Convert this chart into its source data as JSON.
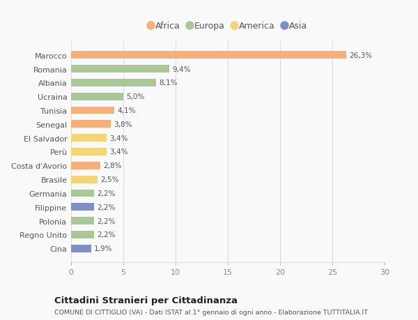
{
  "categories": [
    "Marocco",
    "Romania",
    "Albania",
    "Ucraina",
    "Tunisia",
    "Senegal",
    "El Salvador",
    "Perù",
    "Costa d'Avorio",
    "Brasile",
    "Germania",
    "Filippine",
    "Polonia",
    "Regno Unito",
    "Cina"
  ],
  "values": [
    26.3,
    9.4,
    8.1,
    5.0,
    4.1,
    3.8,
    3.4,
    3.4,
    2.8,
    2.5,
    2.2,
    2.2,
    2.2,
    2.2,
    1.9
  ],
  "labels": [
    "26,3%",
    "9,4%",
    "8,1%",
    "5,0%",
    "4,1%",
    "3,8%",
    "3,4%",
    "3,4%",
    "2,8%",
    "2,5%",
    "2,2%",
    "2,2%",
    "2,2%",
    "2,2%",
    "1,9%"
  ],
  "colors": [
    "#F5B07A",
    "#A8C897",
    "#A8C897",
    "#A8C897",
    "#F5B07A",
    "#F5B07A",
    "#F5D57A",
    "#F5D57A",
    "#F5B07A",
    "#F5D57A",
    "#A8C897",
    "#7B90C8",
    "#A8C897",
    "#A8C897",
    "#7B90C8"
  ],
  "legend": [
    {
      "label": "Africa",
      "color": "#F5B07A"
    },
    {
      "label": "Europa",
      "color": "#A8C897"
    },
    {
      "label": "America",
      "color": "#F5D57A"
    },
    {
      "label": "Asia",
      "color": "#7B90C8"
    }
  ],
  "title": "Cittadini Stranieri per Cittadinanza",
  "subtitle": "COMUNE DI CITTIGLIO (VA) - Dati ISTAT al 1° gennaio di ogni anno - Elaborazione TUTTITALIA.IT",
  "xlim": [
    0,
    30
  ],
  "xticks": [
    0,
    5,
    10,
    15,
    20,
    25,
    30
  ],
  "background_color": "#f9f9f9",
  "bar_height": 0.55,
  "grid_color": "#dddddd",
  "label_color": "#555555",
  "tick_color": "#888888"
}
